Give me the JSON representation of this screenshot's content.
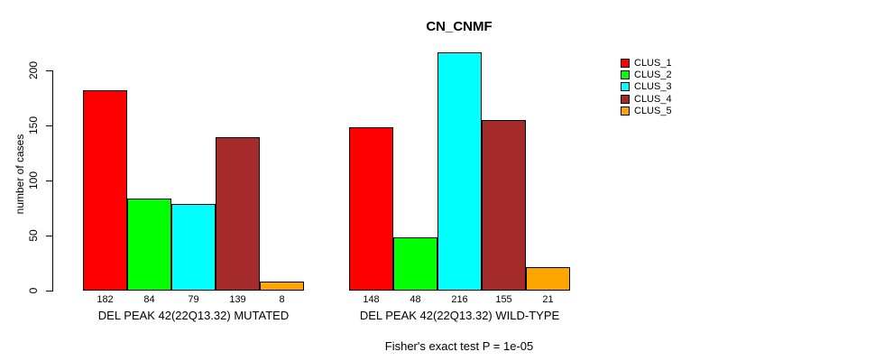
{
  "chart_data": {
    "type": "bar",
    "title": "CN_CNMF",
    "ylabel": "number of cases",
    "xlabel": "",
    "ylim": [
      0,
      220
    ],
    "yticks": [
      0,
      50,
      100,
      150,
      200
    ],
    "grid": false,
    "legend_position": "topright",
    "bar_value_labels": true,
    "categories": [
      "DEL PEAK 42(22Q13.32) MUTATED",
      "DEL PEAK 42(22Q13.32) WILD-TYPE"
    ],
    "series": [
      {
        "name": "CLUS_1",
        "color": "#FF0000",
        "values": [
          182,
          148
        ]
      },
      {
        "name": "CLUS_2",
        "color": "#00FF00",
        "values": [
          84,
          48
        ]
      },
      {
        "name": "CLUS_3",
        "color": "#00FFFF",
        "values": [
          79,
          216
        ]
      },
      {
        "name": "CLUS_4",
        "color": "#A52A2A",
        "values": [
          139,
          155
        ]
      },
      {
        "name": "CLUS_5",
        "color": "#FFA500",
        "values": [
          8,
          21
        ]
      }
    ],
    "annotation": "Fisher's exact test P = 1e-05"
  },
  "colors": {
    "background": "#FFFFFF",
    "axis": "#000000",
    "text": "#000000"
  }
}
